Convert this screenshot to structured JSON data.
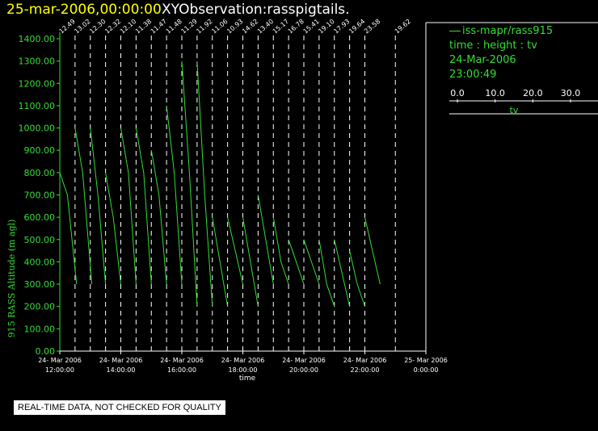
{
  "header": {
    "date_title": "25-mar-2006,00:00:00",
    "observation_title": "XYObservation:rasspigtails."
  },
  "legend": {
    "series_label": "iss-mapr/rass915",
    "variables": "time : height : tv",
    "date": "24-Mar-2006",
    "time": "23:00:49",
    "scale_ticks": [
      "0.0",
      "10.0",
      "20.0",
      "30.0"
    ],
    "scale_label": "tv"
  },
  "disclaimer": "REAL-TIME DATA, NOT CHECKED FOR QUALITY",
  "colors": {
    "data": "#33dd33",
    "axes": "#33dd33",
    "title_date": "#ffff00",
    "profile_lines": "#ffffff",
    "background": "#000000"
  },
  "chart_data": {
    "type": "line",
    "title": "",
    "ylabel": "915 RASS Altitude (m agl)",
    "xlabel": "time",
    "ylim": [
      0,
      1400
    ],
    "y_ticks": [
      "0.00",
      "100.00",
      "200.00",
      "300.00",
      "400.00",
      "500.00",
      "600.00",
      "700.00",
      "800.00",
      "900.00",
      "1000.00",
      "1100.00",
      "1200.00",
      "1300.00",
      "1400.00"
    ],
    "x_ticks": [
      {
        "date": "24- Mar 2006",
        "time": "12:00:00",
        "hour": 12
      },
      {
        "date": "24- Mar 2006",
        "time": "14:00:00",
        "hour": 14
      },
      {
        "date": "24- Mar 2006",
        "time": "16:00:00",
        "hour": 16
      },
      {
        "date": "24- Mar 2006",
        "time": "18:00:00",
        "hour": 18
      },
      {
        "date": "24- Mar 2006",
        "time": "20:00:00",
        "hour": 20
      },
      {
        "date": "24- Mar 2006",
        "time": "22:00:00",
        "hour": 22
      },
      {
        "date": "25- Mar 2006",
        "time": "0:00:00",
        "hour": 24
      }
    ],
    "xlim_hours": [
      12,
      24
    ],
    "profiles": [
      {
        "hour": 12.0,
        "label": "12.49",
        "points": [
          [
            0,
            800
          ],
          [
            0.5,
            700
          ],
          [
            1.1,
            300
          ]
        ]
      },
      {
        "hour": 12.5,
        "label": "13.02",
        "points": [
          [
            0,
            1000
          ],
          [
            0.5,
            800
          ],
          [
            1.1,
            300
          ]
        ]
      },
      {
        "hour": 13.0,
        "label": "12.30",
        "points": [
          [
            0,
            1000
          ],
          [
            0.5,
            700
          ],
          [
            1.0,
            300
          ]
        ]
      },
      {
        "hour": 13.5,
        "label": "12.32",
        "points": [
          [
            0,
            800
          ],
          [
            0.5,
            600
          ],
          [
            1.0,
            300
          ]
        ]
      },
      {
        "hour": 14.0,
        "label": "12.10",
        "points": [
          [
            0,
            1000
          ],
          [
            0.5,
            800
          ],
          [
            1.0,
            300
          ]
        ]
      },
      {
        "hour": 14.5,
        "label": "11.38",
        "points": [
          [
            0,
            1000
          ],
          [
            0.5,
            800
          ],
          [
            1.0,
            300
          ]
        ]
      },
      {
        "hour": 15.0,
        "label": "11.47",
        "points": [
          [
            0,
            900
          ],
          [
            0.5,
            700
          ],
          [
            1.0,
            300
          ]
        ]
      },
      {
        "hour": 15.5,
        "label": "11.48",
        "points": [
          [
            0,
            1100
          ],
          [
            0.5,
            800
          ],
          [
            1.0,
            300
          ]
        ]
      },
      {
        "hour": 16.0,
        "label": "11.29",
        "points": [
          [
            0,
            1300
          ],
          [
            0.5,
            800
          ],
          [
            1.0,
            200
          ]
        ]
      },
      {
        "hour": 16.5,
        "label": "11.92",
        "points": [
          [
            0,
            1300
          ],
          [
            0.5,
            700
          ],
          [
            1.0,
            200
          ]
        ]
      },
      {
        "hour": 17.0,
        "label": "11.06",
        "points": [
          [
            0,
            600
          ],
          [
            0.5,
            400
          ],
          [
            1.0,
            200
          ]
        ]
      },
      {
        "hour": 17.5,
        "label": "10.93",
        "points": [
          [
            0,
            600
          ],
          [
            0.5,
            450
          ],
          [
            1.0,
            300
          ]
        ]
      },
      {
        "hour": 18.0,
        "label": "14.62",
        "points": [
          [
            0,
            600
          ],
          [
            0.5,
            400
          ],
          [
            1.0,
            200
          ]
        ]
      },
      {
        "hour": 18.5,
        "label": "13.40",
        "points": [
          [
            0,
            700
          ],
          [
            0.5,
            500
          ],
          [
            1.0,
            300
          ]
        ]
      },
      {
        "hour": 19.0,
        "label": "15.17",
        "points": [
          [
            0,
            600
          ],
          [
            0.5,
            400
          ],
          [
            1.0,
            300
          ]
        ]
      },
      {
        "hour": 19.5,
        "label": "16.78",
        "points": [
          [
            0,
            500
          ],
          [
            0.5,
            400
          ],
          [
            1.0,
            300
          ]
        ]
      },
      {
        "hour": 20.0,
        "label": "15.41",
        "points": [
          [
            0,
            500
          ],
          [
            0.5,
            400
          ],
          [
            1.0,
            300
          ]
        ]
      },
      {
        "hour": 20.5,
        "label": "19.10",
        "points": [
          [
            0,
            500
          ],
          [
            0.5,
            300
          ],
          [
            1.0,
            200
          ]
        ]
      },
      {
        "hour": 21.0,
        "label": "17.93",
        "points": [
          [
            0,
            500
          ],
          [
            0.5,
            350
          ],
          [
            1.0,
            200
          ]
        ]
      },
      {
        "hour": 21.5,
        "label": "19.64",
        "points": [
          [
            0,
            450
          ],
          [
            0.5,
            300
          ],
          [
            1.0,
            200
          ]
        ]
      },
      {
        "hour": 22.0,
        "label": "23.58",
        "points": [
          [
            0,
            600
          ],
          [
            0.5,
            450
          ],
          [
            1.0,
            300
          ]
        ]
      },
      {
        "hour": 23.0,
        "label": "19.62",
        "points": []
      }
    ]
  }
}
